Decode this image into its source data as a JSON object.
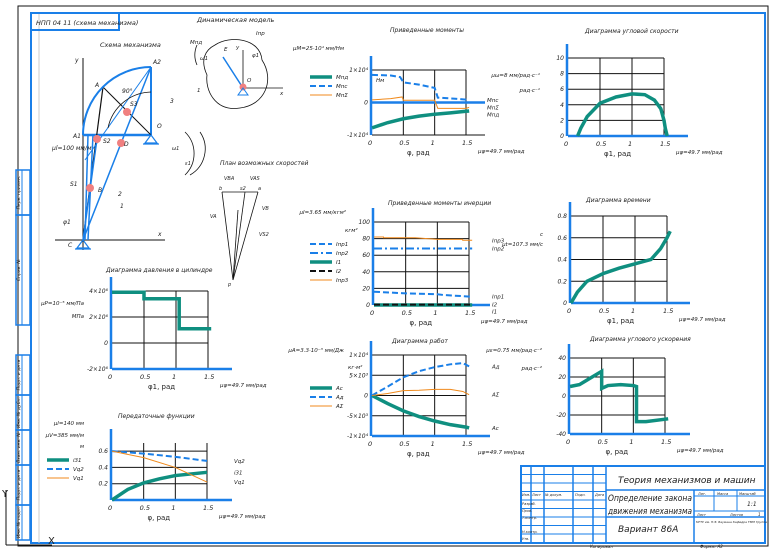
{
  "colors": {
    "frame": "#1a7fe8",
    "teal": "#0f8f80",
    "orange": "#f08a1c",
    "blue": "#1a7fe8",
    "red": "#f08080",
    "black": "#111111"
  },
  "stamp_topleft": "НПП 04 11 (схема механизма)",
  "side_stamps": [
    "Перв. примен.",
    "Справ. №",
    "Подп. и дата",
    "Инв. № дубл.",
    "Взам. инв. №",
    "Подп. и дата",
    "Инв. № подл."
  ],
  "mechanism": {
    "title": "Схема механизма",
    "scale": "μl=100 мм/м",
    "labels": {
      "A": "A",
      "A1": "A1",
      "A2": "A2",
      "O": "O",
      "D": "D",
      "S1": "S1",
      "S2": "S2",
      "S3": "S3",
      "B": "B",
      "C": "C",
      "x": "x",
      "y": "y",
      "phi": "φ1",
      "angle": "90°",
      "n1": "1",
      "n2": "2",
      "n3": "3",
      "omega": "ω1",
      "eps": "ε1"
    }
  },
  "dynamic_model": {
    "title": "Динамическая модель",
    "labels": {
      "M": "Mпд",
      "omega": "ω1",
      "I": "Iпр",
      "phi": "φ1",
      "one": "1",
      "O": "O",
      "x": "x",
      "y": "y",
      "E": "E"
    }
  },
  "velocity_plan": {
    "title": "План возможных скоростей",
    "labels": [
      "VBA",
      "VAS",
      "b",
      "s2",
      "a",
      "VA",
      "VB",
      "VS2",
      "p"
    ]
  },
  "title_block": {
    "discipline": "Теория механизмов и машин",
    "doc_title_1": "Определение закона",
    "doc_title_2": "движения механизма",
    "variant": "Вариант 86А",
    "headers": [
      "Изм.",
      "Лист",
      "№ докум.",
      "Подп.",
      "Дата"
    ],
    "roles": [
      "Разраб.",
      "Пров.",
      "Т.контр.",
      "",
      "Н.контр.",
      "Утв."
    ],
    "lit": "Лит.",
    "mass": "Масса",
    "scale_label": "Масштаб",
    "scale": "1:1",
    "sheet": "Лист",
    "sheets": "Листов",
    "sheets_count": "1",
    "org": "МГТУ им. Н.Э. Баумана Кафедра ТММ Группа",
    "copied": "Копировал",
    "format": "Формат A2"
  },
  "chart_data": [
    {
      "id": "moments",
      "type": "line",
      "title": "Приведенные моменты",
      "scale_y": "μM=25·10⁴ мм/Нм",
      "ylabel": "Нм",
      "xlabel": "φ, рад",
      "scale_x": "μφ=49.7 мм/рад",
      "xlim": [
        0,
        1.5
      ],
      "ylim": [
        -1,
        1
      ],
      "xticks": [
        "0",
        "0.5",
        "1",
        "1.5"
      ],
      "yticks": [
        {
          "v": 1,
          "l": "1×10⁴"
        },
        {
          "v": 0,
          "l": "0"
        },
        {
          "v": -1,
          "l": "-1×10⁴"
        }
      ],
      "series": [
        {
          "name": "Mпд",
          "color": "teal",
          "style": "thick",
          "points": [
            [
              0,
              -0.78
            ],
            [
              0.25,
              -0.62
            ],
            [
              0.5,
              -0.5
            ],
            [
              0.75,
              -0.42
            ],
            [
              1,
              -0.36
            ],
            [
              1.25,
              -0.32
            ],
            [
              1.5,
              -0.27
            ],
            [
              1.55,
              -0.26
            ]
          ]
        },
        {
          "name": "Mпс",
          "color": "blue",
          "style": "dashed",
          "points": [
            [
              0,
              0.85
            ],
            [
              0.3,
              0.83
            ],
            [
              0.45,
              0.78
            ],
            [
              0.5,
              0.62
            ],
            [
              0.75,
              0.55
            ],
            [
              1,
              0.45
            ],
            [
              1.05,
              0.15
            ],
            [
              1.3,
              0.12
            ],
            [
              1.55,
              0.08
            ]
          ]
        },
        {
          "name": "MпΣ",
          "color": "orange",
          "style": "thin",
          "points": [
            [
              0,
              0.08
            ],
            [
              0.3,
              0.12
            ],
            [
              0.48,
              0.17
            ],
            [
              0.5,
              0.07
            ],
            [
              1,
              0.07
            ],
            [
              1.05,
              -0.18
            ],
            [
              1.5,
              -0.18
            ],
            [
              1.55,
              -0.15
            ]
          ]
        }
      ]
    },
    {
      "id": "inertia",
      "type": "line",
      "title": "Приведенные моменты инерции",
      "scale_y": "μI=3.65 мм/кгм²",
      "ylabel": "кгм²",
      "xlabel": "φ, рад",
      "scale_x": "μφ=49.7 мм/рад",
      "xlim": [
        0,
        1.5
      ],
      "ylim": [
        0,
        100
      ],
      "xticks": [
        "0",
        "0.5",
        "1",
        "1.5"
      ],
      "yticks": [
        {
          "v": 0,
          "l": "0"
        },
        {
          "v": 20,
          "l": "20"
        },
        {
          "v": 40,
          "l": "40"
        },
        {
          "v": 60,
          "l": "60"
        },
        {
          "v": 80,
          "l": "80"
        },
        {
          "v": 100,
          "l": "100"
        }
      ],
      "series": [
        {
          "name": "Iпр1",
          "color": "blue",
          "style": "dashed",
          "points": [
            [
              0,
              16
            ],
            [
              0.5,
              14
            ],
            [
              1,
              13
            ],
            [
              1.1,
              12
            ],
            [
              1.55,
              10
            ]
          ]
        },
        {
          "name": "Iпр2",
          "color": "blue",
          "style": "dashdot",
          "points": [
            [
              0,
              68
            ],
            [
              1.55,
              68
            ]
          ]
        },
        {
          "name": "I1",
          "color": "teal",
          "style": "thick",
          "points": [
            [
              0,
              0
            ],
            [
              1.55,
              0
            ]
          ]
        },
        {
          "name": "I2",
          "color": "black",
          "style": "dashed",
          "points": [
            [
              0,
              0.5
            ],
            [
              1.55,
              0.5
            ]
          ]
        },
        {
          "name": "Iпр3",
          "color": "orange",
          "style": "thin",
          "points": [
            [
              0,
              82
            ],
            [
              0.15,
              82
            ],
            [
              0.15,
              81
            ],
            [
              0.65,
              81
            ],
            [
              1,
              79
            ],
            [
              1.4,
              79
            ],
            [
              1.4,
              78
            ],
            [
              1.55,
              78
            ]
          ]
        }
      ]
    },
    {
      "id": "work",
      "type": "line",
      "title": "Диаграмма работ",
      "scale_y": "μA=3.3·10⁻³ мм/Дж",
      "ylabel": "кг·м²",
      "xlabel": "φ, рад",
      "scale_x": "μφ=49.7 мм/рад",
      "xlim": [
        0,
        1.5
      ],
      "ylim": [
        -1,
        1
      ],
      "xticks": [
        "0",
        "0.5",
        "1",
        "1.5"
      ],
      "yticks": [
        {
          "v": 1,
          "l": "1×10⁴"
        },
        {
          "v": 0.5,
          "l": "5×10³"
        },
        {
          "v": 0,
          "l": "0"
        },
        {
          "v": -0.5,
          "l": "-5×10³"
        },
        {
          "v": -1,
          "l": "-1×10⁴"
        }
      ],
      "series": [
        {
          "name": "Aс",
          "color": "teal",
          "style": "thick",
          "points": [
            [
              0,
              0
            ],
            [
              0.25,
              -0.2
            ],
            [
              0.5,
              -0.38
            ],
            [
              0.75,
              -0.52
            ],
            [
              1,
              -0.63
            ],
            [
              1.25,
              -0.72
            ],
            [
              1.5,
              -0.78
            ],
            [
              1.55,
              -0.8
            ]
          ]
        },
        {
          "name": "Aд",
          "color": "blue",
          "style": "dashed",
          "points": [
            [
              0,
              0
            ],
            [
              0.25,
              0.22
            ],
            [
              0.5,
              0.45
            ],
            [
              0.75,
              0.6
            ],
            [
              1,
              0.7
            ],
            [
              1.25,
              0.77
            ],
            [
              1.45,
              0.8
            ],
            [
              1.55,
              0.72
            ]
          ]
        },
        {
          "name": "AΣ",
          "color": "orange",
          "style": "thin",
          "points": [
            [
              0,
              0
            ],
            [
              0.25,
              0.05
            ],
            [
              0.5,
              0.12
            ],
            [
              0.75,
              0.13
            ],
            [
              1,
              0.15
            ],
            [
              1.25,
              0.15
            ],
            [
              1.45,
              0.1
            ],
            [
              1.55,
              0.02
            ]
          ]
        }
      ]
    },
    {
      "id": "ang_velocity",
      "type": "line",
      "title": "Диаграмма угловой скорости",
      "scale_y": "μω=8 мм/рад·с⁻¹",
      "ylabel": "рад·с⁻¹",
      "xlabel": "φ1, рад",
      "scale_x": "μφ=49.7 мм/рад",
      "xlim": [
        0,
        1.5
      ],
      "ylim": [
        0,
        10
      ],
      "xticks": [
        "0",
        "0.5",
        "1",
        "1.5"
      ],
      "yticks": [
        {
          "v": 0,
          "l": "0"
        },
        {
          "v": 2,
          "l": "2"
        },
        {
          "v": 4,
          "l": "4"
        },
        {
          "v": 6,
          "l": "6"
        },
        {
          "v": 8,
          "l": "8"
        },
        {
          "v": 10,
          "l": "10"
        }
      ],
      "series": [
        {
          "name": "ω",
          "color": "teal",
          "style": "thick",
          "points": [
            [
              0.15,
              0
            ],
            [
              0.2,
              1
            ],
            [
              0.3,
              2.5
            ],
            [
              0.5,
              4.2
            ],
            [
              0.75,
              5
            ],
            [
              1,
              5.4
            ],
            [
              1.2,
              5.3
            ],
            [
              1.35,
              4.6
            ],
            [
              1.45,
              3.5
            ],
            [
              1.5,
              2
            ],
            [
              1.52,
              1
            ],
            [
              1.55,
              0
            ]
          ]
        }
      ]
    },
    {
      "id": "time",
      "type": "line",
      "title": "Диаграмма времени",
      "scale_y": "μt=107.3 мм/с",
      "ylabel": "с",
      "xlabel": "φ1, рад",
      "scale_x": "μφ=49.7 мм/рад",
      "xlim": [
        0,
        1.5
      ],
      "ylim": [
        0,
        0.8
      ],
      "xticks": [
        "0",
        "0.5",
        "1",
        "1.5"
      ],
      "yticks": [
        {
          "v": 0,
          "l": "0"
        },
        {
          "v": 0.2,
          "l": "0.2"
        },
        {
          "v": 0.4,
          "l": "0.4"
        },
        {
          "v": 0.6,
          "l": "0.6"
        },
        {
          "v": 0.8,
          "l": "0.8"
        }
      ],
      "series": [
        {
          "name": "t",
          "color": "teal",
          "style": "thick",
          "points": [
            [
              0,
              0
            ],
            [
              0.1,
              0.1
            ],
            [
              0.25,
              0.2
            ],
            [
              0.5,
              0.27
            ],
            [
              0.75,
              0.32
            ],
            [
              1,
              0.36
            ],
            [
              1.25,
              0.4
            ],
            [
              1.4,
              0.5
            ],
            [
              1.5,
              0.6
            ],
            [
              1.55,
              0.66
            ]
          ]
        }
      ]
    },
    {
      "id": "ang_accel",
      "type": "line",
      "title": "Диаграмма углового ускорения",
      "scale_y": "με=0.75 мм/рад·с⁻²",
      "ylabel": "рад·с⁻²",
      "xlabel": "φ, рад",
      "scale_x": "μφ=49.7 мм/рад",
      "xlim": [
        0,
        1.5
      ],
      "ylim": [
        -40,
        40
      ],
      "xticks": [
        "0",
        "0.5",
        "1",
        "1.5"
      ],
      "yticks": [
        {
          "v": 40,
          "l": "40"
        },
        {
          "v": 20,
          "l": "20"
        },
        {
          "v": 0,
          "l": "0"
        },
        {
          "v": -20,
          "l": "-20"
        },
        {
          "v": -40,
          "l": "-40"
        }
      ],
      "series": [
        {
          "name": "ε",
          "color": "teal",
          "style": "thick",
          "points": [
            [
              0,
              10
            ],
            [
              0.15,
              12
            ],
            [
              0.3,
              18
            ],
            [
              0.5,
              26
            ],
            [
              0.5,
              8
            ],
            [
              0.6,
              11
            ],
            [
              0.8,
              12
            ],
            [
              1,
              11
            ],
            [
              1.05,
              10
            ],
            [
              1.05,
              -27
            ],
            [
              1.2,
              -27
            ],
            [
              1.55,
              -24
            ]
          ]
        }
      ]
    },
    {
      "id": "pressure",
      "type": "line",
      "title": "Диаграмма давления в цилиндре",
      "scale_y": "μP=10⁻⁵ мм/Па",
      "ylabel": "МПа",
      "xlabel": "φ1, рад",
      "scale_x": "μφ=49.7 мм/рад",
      "xlim": [
        0,
        1.5
      ],
      "ylim": [
        -2,
        4
      ],
      "xticks": [
        "0",
        "0.5",
        "1",
        "1.5"
      ],
      "yticks": [
        {
          "v": 4,
          "l": "4×10⁶"
        },
        {
          "v": 2,
          "l": "2×10⁶"
        },
        {
          "v": 0,
          "l": "0"
        },
        {
          "v": -2,
          "l": "-2×10⁶"
        }
      ],
      "series": [
        {
          "name": "P",
          "color": "teal",
          "style": "thick",
          "points": [
            [
              0,
              3.9
            ],
            [
              0.5,
              3.9
            ],
            [
              0.5,
              3.4
            ],
            [
              1.05,
              3.4
            ],
            [
              1.05,
              1.1
            ],
            [
              1.55,
              1.1
            ]
          ]
        }
      ]
    },
    {
      "id": "transfer",
      "type": "line",
      "title": "Передаточные функции",
      "scale_y": "μV=385 мм/м",
      "extra": "μl=140 мм",
      "ylabel": "м",
      "xlabel": "φ, рад",
      "scale_x": "μφ=49.7 мм/рад",
      "xlim": [
        0,
        1.5
      ],
      "ylim": [
        0,
        0.7
      ],
      "xticks": [
        "0",
        "0.5",
        "1",
        "1.5"
      ],
      "yticks": [
        {
          "v": 0.2,
          "l": "0.2"
        },
        {
          "v": 0.4,
          "l": "0.4"
        },
        {
          "v": 0.6,
          "l": "0.6"
        }
      ],
      "series": [
        {
          "name": "i31",
          "color": "teal",
          "style": "thick",
          "points": [
            [
              0,
              0
            ],
            [
              0.25,
              0.13
            ],
            [
              0.5,
              0.21
            ],
            [
              0.75,
              0.26
            ],
            [
              1,
              0.3
            ],
            [
              1.25,
              0.32
            ],
            [
              1.5,
              0.34
            ]
          ]
        },
        {
          "name": "Vq2",
          "color": "blue",
          "style": "dashed",
          "points": [
            [
              0,
              0.6
            ],
            [
              0.5,
              0.57
            ],
            [
              1,
              0.53
            ],
            [
              1.5,
              0.48
            ]
          ]
        },
        {
          "name": "Vq1",
          "color": "orange",
          "style": "thin",
          "points": [
            [
              0,
              0.6
            ],
            [
              0.5,
              0.52
            ],
            [
              1,
              0.4
            ],
            [
              1.5,
              0.22
            ]
          ]
        }
      ]
    }
  ]
}
